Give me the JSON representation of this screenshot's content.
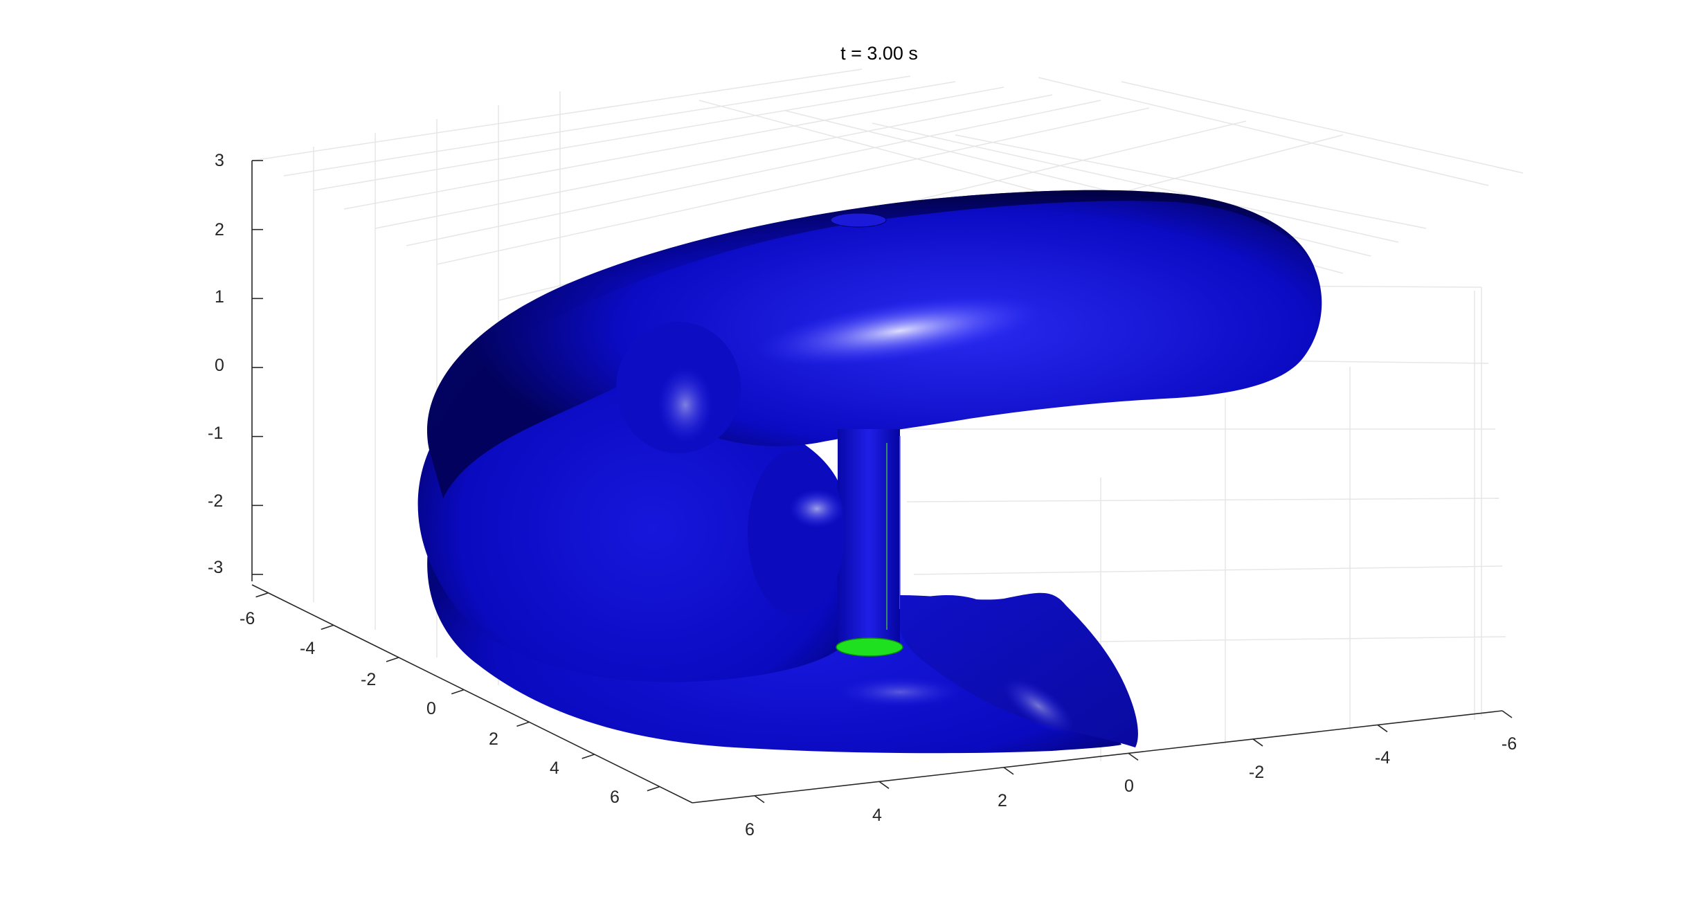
{
  "figure": {
    "title": "t = 3.00 s"
  },
  "chart_data": {
    "type": "surface3d",
    "title": "t = 3.00 s",
    "xlabel": "",
    "ylabel": "",
    "zlabel": "",
    "axes": {
      "x": {
        "ticks": [
          6,
          4,
          2,
          0,
          -2,
          -4,
          -6
        ],
        "tick_labels": [
          "6",
          "4",
          "2",
          "0",
          "-2",
          "-4",
          "-6"
        ],
        "lim": [
          -6,
          7
        ]
      },
      "y": {
        "ticks": [
          -6,
          -4,
          -2,
          0,
          2,
          4,
          6
        ],
        "tick_labels": [
          "-6",
          "-4",
          "-2",
          "0",
          "2",
          "4",
          "6"
        ],
        "lim": [
          -6.5,
          7
        ]
      },
      "z": {
        "ticks": [
          3,
          2,
          1,
          0,
          -1,
          -2,
          -3
        ],
        "tick_labels": [
          "3",
          "2",
          "1",
          "0",
          "-1",
          "-2",
          "-3"
        ],
        "lim": [
          -3.2,
          3
        ]
      }
    },
    "grid": true,
    "legend": "none",
    "series": [
      {
        "kind": "isosurface",
        "color": "#0000cd",
        "shading": "lit"
      },
      {
        "kind": "cap",
        "color": "#00dd00"
      }
    ]
  },
  "colors": {
    "surface": "#0000cd",
    "surface_dark": "#000044",
    "highlight": "#c8c8ff",
    "cap": "#1fe01f",
    "grid": "#e6e6e6",
    "axis": "#262626"
  }
}
